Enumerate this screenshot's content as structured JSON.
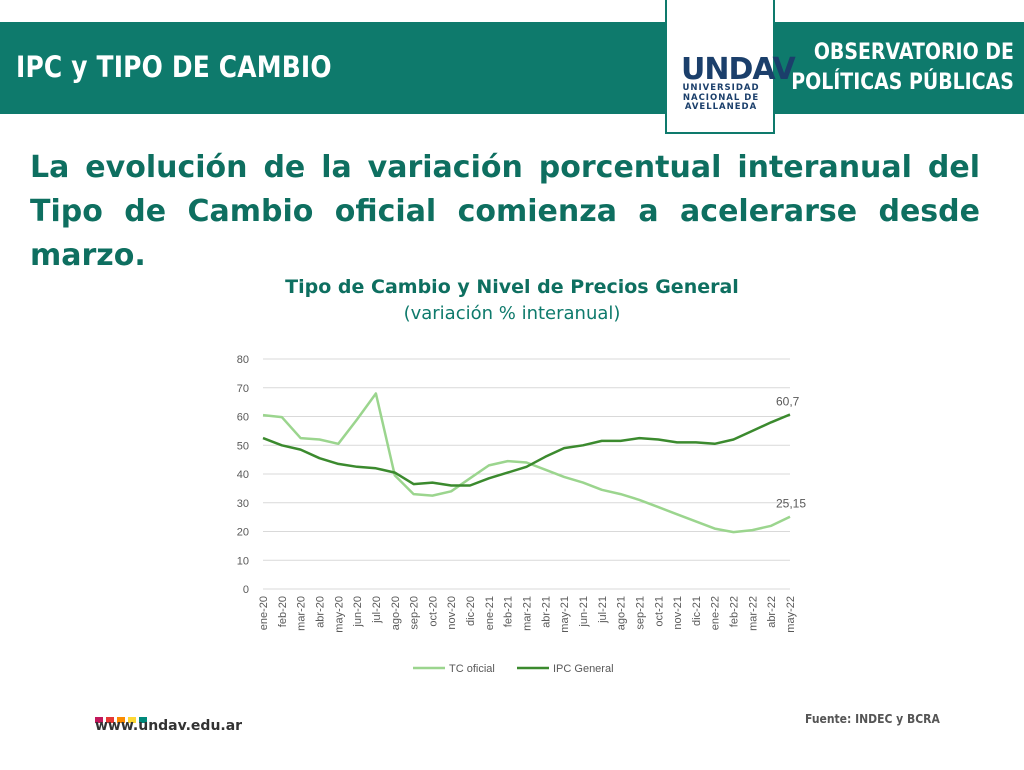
{
  "header": {
    "title": "IPC y TIPO DE CAMBIO",
    "observatory_line1": "OBSERVATORIO DE",
    "observatory_line2": "POLÍTICAS PÚBLICAS",
    "logo_mark": "UNDAV",
    "logo_line1": "UNIVERSIDAD",
    "logo_line2": "NACIONAL DE",
    "logo_line3": "AVELLANEDA"
  },
  "headline": "La evolución de la variación porcentual interanual del Tipo de Cambio oficial comienza a acelerarse desde marzo.",
  "footer": {
    "url": "www.undav.edu.ar",
    "source": "Fuente: INDEC y BCRA",
    "dot_colors": [
      "#c2185b",
      "#e53935",
      "#fb8c00",
      "#fdd835",
      "#00897b"
    ]
  },
  "colors": {
    "header_bg": "#0e7a6c",
    "tc_line": "#9bd58e",
    "ipc_line": "#3b8a2e"
  },
  "chart_data": {
    "type": "line",
    "title": "Tipo de Cambio y Nivel de Precios General",
    "subtitle": "(variación % interanual)",
    "categories": [
      "ene-20",
      "feb-20",
      "mar-20",
      "abr-20",
      "may-20",
      "jun-20",
      "jul-20",
      "ago-20",
      "sep-20",
      "oct-20",
      "nov-20",
      "dic-20",
      "ene-21",
      "feb-21",
      "mar-21",
      "abr-21",
      "may-21",
      "jun-21",
      "jul-21",
      "ago-21",
      "sep-21",
      "oct-21",
      "nov-21",
      "dic-21",
      "ene-22",
      "feb-22",
      "mar-22",
      "abr-22",
      "may-22"
    ],
    "ylim": [
      0,
      80
    ],
    "yticks": [
      0,
      10,
      20,
      30,
      40,
      50,
      60,
      70,
      80
    ],
    "grid": true,
    "legend_position": "bottom",
    "series": [
      {
        "name": "TC oficial",
        "values": [
          60.5,
          59.8,
          52.5,
          52,
          50.5,
          59,
          68,
          39.5,
          33,
          32.5,
          34,
          38.5,
          43,
          44.5,
          44,
          41.5,
          39,
          37,
          34.5,
          33,
          31,
          28.5,
          26,
          23.5,
          21,
          19.8,
          20.5,
          22,
          25.15
        ]
      },
      {
        "name": "IPC General",
        "values": [
          52.5,
          50,
          48.5,
          45.5,
          43.5,
          42.5,
          42,
          40.5,
          36.5,
          37,
          36,
          36,
          38.5,
          40.5,
          42.5,
          46,
          49,
          50,
          51.5,
          51.5,
          52.5,
          52,
          51,
          51,
          50.5,
          52,
          55,
          58,
          60.7
        ]
      }
    ],
    "annotations": [
      {
        "series": "IPC General",
        "category": "may-22",
        "label": "60,7"
      },
      {
        "series": "TC oficial",
        "category": "may-22",
        "label": "25,15"
      }
    ]
  }
}
